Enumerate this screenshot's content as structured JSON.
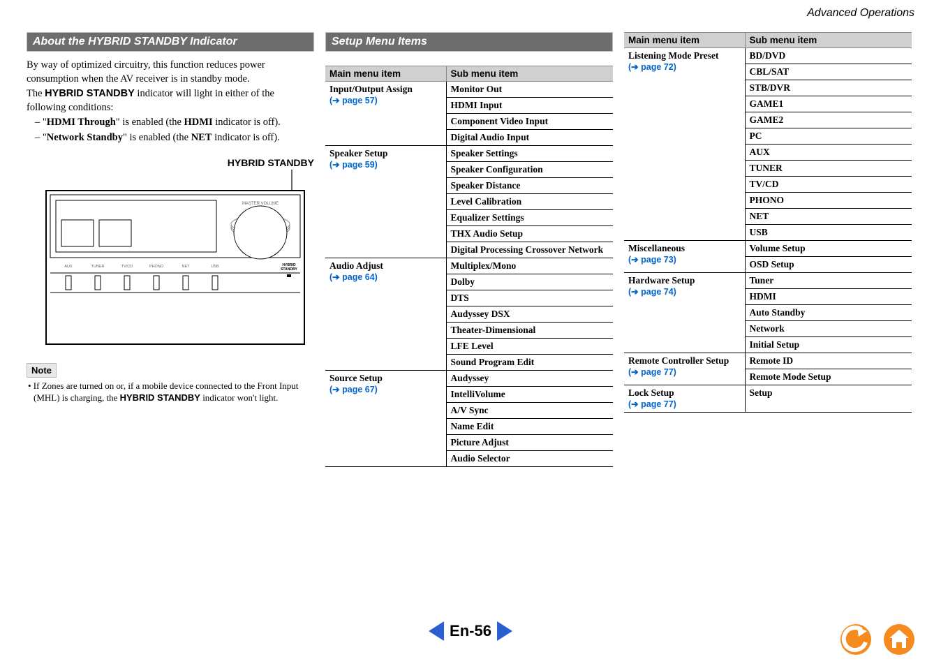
{
  "header": {
    "section_label": "Advanced Operations"
  },
  "col1": {
    "bar_title": "About the HYBRID STANDBY Indicator",
    "para1_a": "By way of optimized circuitry, this function reduces power consumption when the AV receiver is in standby mode.",
    "para1_b_pre": "The ",
    "para1_b_bold": "HYBRID STANDBY",
    "para1_b_post": " indicator will light in either of the following conditions:",
    "bullet1_pre": "– \"",
    "bullet1_bold1": "HDMI Through",
    "bullet1_mid": "\" is enabled (the ",
    "bullet1_bold2": "HDMI",
    "bullet1_post": " indicator is off).",
    "bullet2_pre": "– \"",
    "bullet2_bold1": "Network Standby",
    "bullet2_mid": "\" is enabled (the ",
    "bullet2_bold2": "NET",
    "bullet2_post": " indicator is off).",
    "caption": "HYBRID STANDBY",
    "note_label": "Note",
    "note_text_pre": "• If Zones are turned on or, if a mobile device connected to the Front Input (MHL) is charging, the ",
    "note_text_bold": "HYBRID STANDBY",
    "note_text_post": " indicator won't light.",
    "receiver": {
      "knob_label": "MASTER VOLUME",
      "btn_labels": [
        "AUX",
        "TUNER",
        "TV/CD",
        "PHONO",
        "NET",
        "USB"
      ],
      "hybrid_label": "HYBRID\nSTANDBY"
    }
  },
  "col2": {
    "bar_title": "Setup Menu Items",
    "th_main": "Main menu item",
    "th_sub": "Sub menu item",
    "groups": [
      {
        "main": "Input/Output Assign",
        "page": "page 57",
        "subs": [
          "Monitor Out",
          "HDMI Input",
          "Component Video Input",
          "Digital Audio Input"
        ]
      },
      {
        "main": "Speaker Setup",
        "page": "page 59",
        "subs": [
          "Speaker Settings",
          "Speaker Configuration",
          "Speaker Distance",
          "Level Calibration",
          "Equalizer Settings",
          "THX Audio Setup",
          "Digital Processing Crossover Network"
        ]
      },
      {
        "main": "Audio Adjust",
        "page": "page 64",
        "subs": [
          "Multiplex/Mono",
          "Dolby",
          "DTS",
          "Audyssey DSX",
          "Theater-Dimensional",
          "LFE Level",
          "Sound Program Edit"
        ]
      },
      {
        "main": "Source Setup",
        "page": "page 67",
        "subs": [
          "Audyssey",
          "IntelliVolume",
          "A/V Sync",
          "Name Edit",
          "Picture Adjust",
          "Audio Selector"
        ]
      }
    ]
  },
  "col3": {
    "th_main": "Main menu item",
    "th_sub": "Sub menu item",
    "groups": [
      {
        "main": "Listening Mode Preset",
        "page": "page 72",
        "subs": [
          "BD/DVD",
          "CBL/SAT",
          "STB/DVR",
          "GAME1",
          "GAME2",
          "PC",
          "AUX",
          "TUNER",
          "TV/CD",
          "PHONO",
          "NET",
          "USB"
        ]
      },
      {
        "main": "Miscellaneous",
        "page": "page 73",
        "subs": [
          "Volume Setup",
          "OSD Setup"
        ]
      },
      {
        "main": "Hardware Setup",
        "page": "page 74",
        "subs": [
          "Tuner",
          "HDMI",
          "Auto Standby",
          "Network",
          "Initial Setup"
        ]
      },
      {
        "main": "Remote Controller Setup",
        "page": "page 77",
        "subs": [
          "Remote ID",
          "Remote Mode Setup"
        ]
      },
      {
        "main": "Lock Setup",
        "page": "page 77",
        "subs": [
          "Setup"
        ]
      }
    ]
  },
  "footer": {
    "page_label": "En-56"
  },
  "colors": {
    "bar_bg": "#6d6d6d",
    "bar_fg": "#ffffff",
    "link": "#0066cc",
    "table_header_bg": "#d0d0d0",
    "nav_blue": "#2a5fd0",
    "back_orange": "#f58a1f",
    "home_orange": "#f58a1f"
  }
}
